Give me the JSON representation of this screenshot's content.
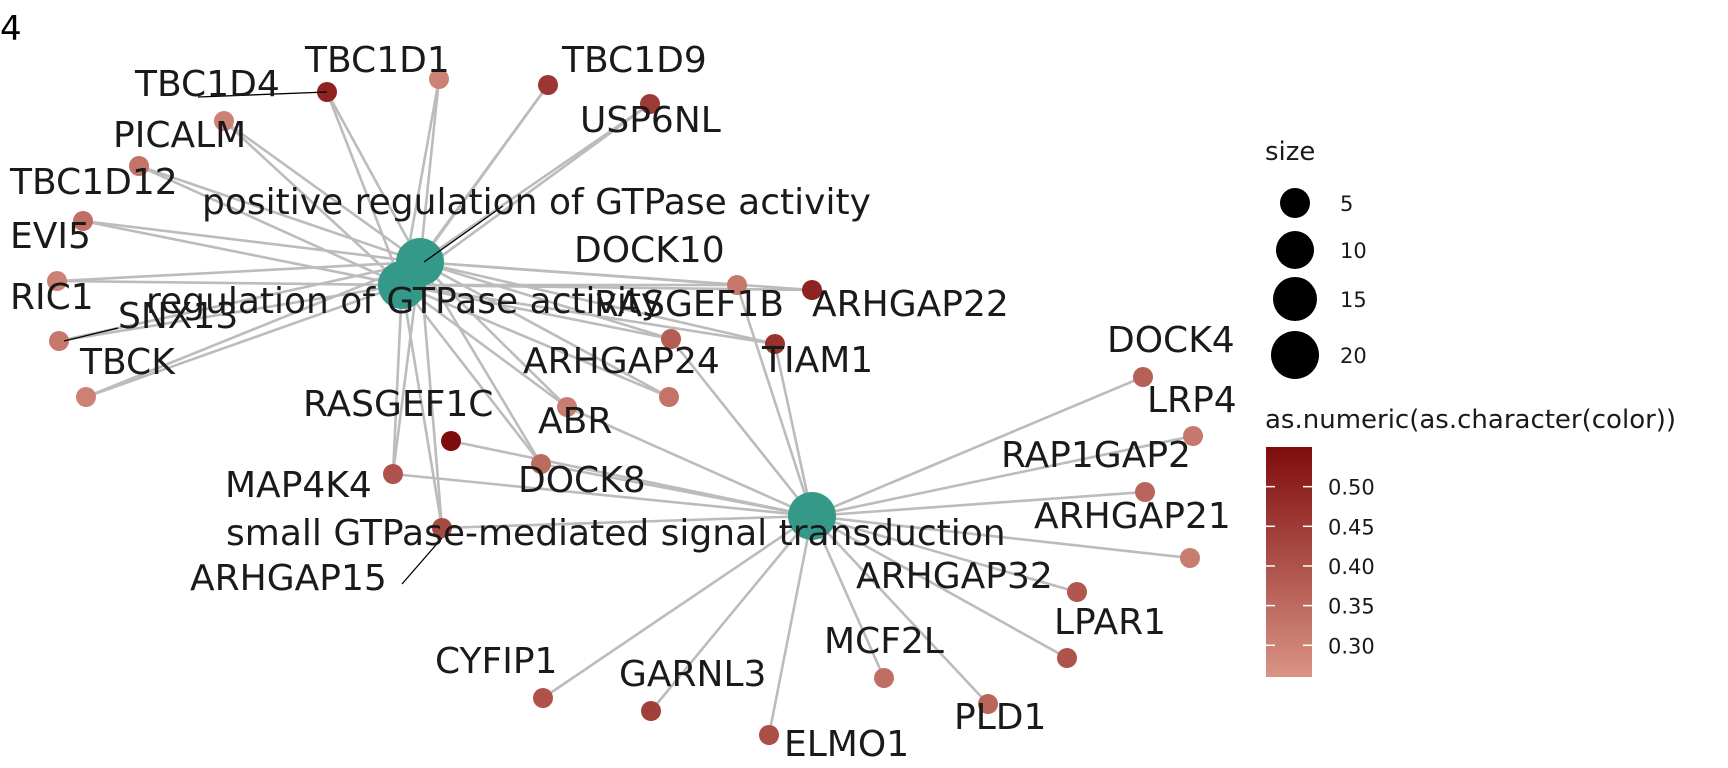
{
  "panel_label": "4",
  "colors": {
    "category_node": "#35998a",
    "edge": "#bcbcbc",
    "gradient_high": "#7f0c0c",
    "gradient_low": "#d99485"
  },
  "categories": [
    {
      "id": "pos",
      "label": "positive regulation of GTPase activity"
    },
    {
      "id": "reg",
      "label": "regulation of GTPase activity"
    },
    {
      "id": "sgt",
      "label": "small GTPase-mediated signal transduction"
    }
  ],
  "genes": [
    {
      "id": "TBC1D1",
      "label": "TBC1D1",
      "value": 0.3,
      "links": [
        "pos",
        "reg"
      ]
    },
    {
      "id": "TBC1D4",
      "label": "TBC1D4",
      "value": 0.5,
      "links": [
        "pos",
        "reg"
      ]
    },
    {
      "id": "TBC1D4b",
      "label": "",
      "value": 0.3,
      "links": [
        "pos",
        "reg"
      ]
    },
    {
      "id": "TBC1D9",
      "label": "TBC1D9",
      "value": 0.46,
      "links": [
        "pos",
        "reg"
      ]
    },
    {
      "id": "USP6NL",
      "label": "USP6NL",
      "value": 0.45,
      "links": [
        "pos",
        "reg"
      ]
    },
    {
      "id": "PICALM",
      "label": "PICALM",
      "value": 0.33,
      "links": [
        "pos",
        "reg"
      ]
    },
    {
      "id": "TBC1D12",
      "label": "TBC1D12",
      "value": 0.34,
      "links": [
        "pos",
        "reg"
      ]
    },
    {
      "id": "EVI5",
      "label": "EVI5",
      "value": 0.3,
      "links": [
        "pos",
        "reg"
      ]
    },
    {
      "id": "RIC1",
      "label": "RIC1",
      "value": 0.32,
      "links": [
        "pos",
        "reg"
      ]
    },
    {
      "id": "SNX13",
      "label": "SNX13",
      "value": 0.32,
      "links": [
        "pos",
        "reg"
      ]
    },
    {
      "id": "TBCK",
      "label": "TBCK",
      "value": 0.3,
      "links": [
        "pos",
        "reg"
      ]
    },
    {
      "id": "DOCK10",
      "label": "DOCK10",
      "value": 0.32,
      "links": [
        "pos",
        "reg",
        "sgt"
      ]
    },
    {
      "id": "ARHGAP22",
      "label": "ARHGAP22",
      "value": 0.5,
      "links": [
        "pos",
        "reg"
      ]
    },
    {
      "id": "RASGEF1B",
      "label": "RASGEF1B",
      "value": 0.38,
      "links": [
        "pos",
        "reg",
        "sgt"
      ]
    },
    {
      "id": "TIAM1",
      "label": "TIAM1",
      "value": 0.47,
      "links": [
        "pos",
        "reg",
        "sgt"
      ]
    },
    {
      "id": "ARHGAP24",
      "label": "ARHGAP24",
      "value": 0.33,
      "links": [
        "pos",
        "reg"
      ]
    },
    {
      "id": "ARHGAP24b",
      "label": "",
      "value": 0.31,
      "links": [
        "pos",
        "reg",
        "sgt"
      ]
    },
    {
      "id": "RASGEF1C",
      "label": "RASGEF1C",
      "value": 0.55,
      "links": [
        "sgt"
      ]
    },
    {
      "id": "ABR",
      "label": "ABR",
      "value": 0.35,
      "links": [
        "pos",
        "reg",
        "sgt"
      ]
    },
    {
      "id": "MAP4K4",
      "label": "MAP4K4",
      "value": 0.4,
      "links": [
        "pos",
        "reg",
        "sgt"
      ]
    },
    {
      "id": "DOCK8",
      "label": "DOCK8",
      "value": 0.35,
      "links": [
        "pos",
        "reg",
        "sgt"
      ]
    },
    {
      "id": "ARHGAP15",
      "label": "ARHGAP15",
      "value": 0.42,
      "links": [
        "pos",
        "reg",
        "sgt"
      ]
    },
    {
      "id": "DOCK4",
      "label": "DOCK4",
      "value": 0.37,
      "links": [
        "sgt"
      ]
    },
    {
      "id": "LRP4",
      "label": "LRP4",
      "value": 0.32,
      "links": [
        "sgt"
      ]
    },
    {
      "id": "RAP1GAP2",
      "label": "RAP1GAP2",
      "value": 0.36,
      "links": [
        "sgt"
      ]
    },
    {
      "id": "ARHGAP21",
      "label": "ARHGAP21",
      "value": 0.31,
      "links": [
        "sgt"
      ]
    },
    {
      "id": "ARHGAP32",
      "label": "ARHGAP32",
      "value": 0.39,
      "links": [
        "sgt"
      ]
    },
    {
      "id": "LPAR1",
      "label": "LPAR1",
      "value": 0.4,
      "links": [
        "sgt"
      ]
    },
    {
      "id": "CYFIP1",
      "label": "CYFIP1",
      "value": 0.4,
      "links": [
        "sgt"
      ]
    },
    {
      "id": "GARNL3",
      "label": "GARNL3",
      "value": 0.44,
      "links": [
        "sgt"
      ]
    },
    {
      "id": "MCF2L",
      "label": "MCF2L",
      "value": 0.34,
      "links": [
        "sgt"
      ]
    },
    {
      "id": "PLD1",
      "label": "PLD1",
      "value": 0.36,
      "links": [
        "sgt"
      ]
    },
    {
      "id": "ELMO1",
      "label": "ELMO1",
      "value": 0.41,
      "links": [
        "sgt"
      ]
    }
  ],
  "legend": {
    "size_title": "size",
    "size_items": [
      {
        "label": "5",
        "value": 5
      },
      {
        "label": "10",
        "value": 10
      },
      {
        "label": "15",
        "value": 15
      },
      {
        "label": "20",
        "value": 20
      }
    ],
    "color_title": "as.numeric(as.character(color))",
    "color_ticks": [
      "0.50",
      "0.45",
      "0.40",
      "0.35",
      "0.30"
    ],
    "color_tick_values": [
      0.5,
      0.45,
      0.4,
      0.35,
      0.3
    ],
    "color_range": [
      0.26,
      0.55
    ]
  }
}
